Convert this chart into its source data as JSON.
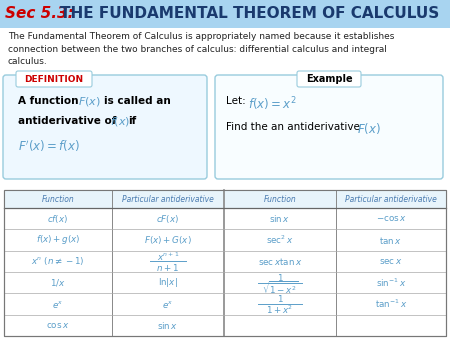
{
  "title_sec": "Sec 5.3:",
  "title_main": " THE FUNDAMENTAL THEOREM OF CALCULUS",
  "title_bg": "#a8d4f0",
  "title_fontsize": 11.5,
  "body_text": "The Fundamental Theorem of Calculus is appropriately named because it establishes\nconnection between the two branches of calculus: differential calculus and integral\ncalculus.",
  "def_label": "DEFINITION",
  "ex_label": "Example",
  "cyan_color": "#5b9ec9",
  "text_color": "#222222",
  "box_border": "#88ccdd",
  "def_red": "#cc0000",
  "bg_color": "#ffffff",
  "table_header_color": "#5b9bd5",
  "table_headers": [
    "Function",
    "Particular antiderivative",
    "Function",
    "Particular antiderivative"
  ]
}
